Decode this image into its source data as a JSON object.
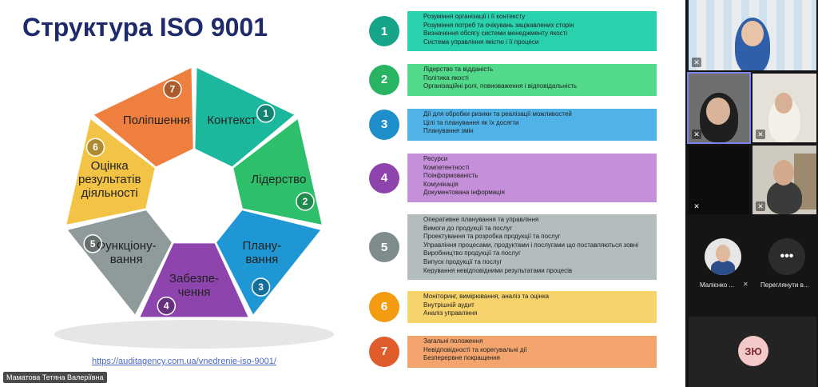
{
  "slide": {
    "title": "Структура ISO 9001",
    "link": "https://auditagency.com.ua/vnedrenie-iso-9001/",
    "wheel": [
      {
        "num": "1",
        "lines": [
          "Контекст"
        ],
        "color": "#1cb89e"
      },
      {
        "num": "2",
        "lines": [
          "Лідерство"
        ],
        "color": "#2dbf6a"
      },
      {
        "num": "3",
        "lines": [
          "Плану-",
          "вання"
        ],
        "color": "#1e97d4"
      },
      {
        "num": "4",
        "lines": [
          "Забезпе-",
          "чення"
        ],
        "color": "#8e44ad"
      },
      {
        "num": "5",
        "lines": [
          "Функціону-",
          "вання"
        ],
        "color": "#8f9a9a"
      },
      {
        "num": "6",
        "lines": [
          "Оцінка",
          "результатів",
          "діяльності"
        ],
        "color": "#f2c344"
      },
      {
        "num": "7",
        "lines": [
          "Поліпшення"
        ],
        "color": "#ef7f3f"
      }
    ],
    "sections": [
      {
        "num": "1",
        "circle": "#17a589",
        "box": "#2ad1ad",
        "items": [
          "Розуміння організації і її контексту",
          "Розуміння потреб та очікувань зацікавлених сторін",
          "Визначення обсягу системи менеджменту якості",
          "Система управління якістю і її процеси"
        ]
      },
      {
        "num": "2",
        "circle": "#28b463",
        "box": "#52d98a",
        "items": [
          "Лідерство та відданість",
          "Політика якості",
          "Організаційні ролі, повноваження і відповідальність"
        ]
      },
      {
        "num": "3",
        "circle": "#1f8fcb",
        "box": "#4fb3e8",
        "items": [
          "Дії для обробки ризики та реалізації можливостей",
          "Цілі та планування як їх досягти",
          "Планування змін"
        ]
      },
      {
        "num": "4",
        "circle": "#8e44ad",
        "box": "#c58fd9",
        "items": [
          "Ресурси",
          "Компетентності",
          "Поінформованість",
          "Комунікація",
          "Документована інформація"
        ]
      },
      {
        "num": "5",
        "circle": "#7f8c8d",
        "box": "#b3bdbd",
        "items": [
          "Оперативне планування та управління",
          "Вимоги до продукції та послуг",
          "Проектування та розробка продукції та послуг",
          "Управління процесами, продуктами і послугами що поставляються зовні",
          "Виробництво продукції та послуг",
          "Випуск продукції та послуг",
          "Керування невідповідними результатами процесів"
        ]
      },
      {
        "num": "6",
        "circle": "#f39c12",
        "box": "#f7d36b",
        "items": [
          "Моніторинг, вимірювання, аналіз та оцінка",
          "Внутрішній аудит",
          "Аналіз управління"
        ]
      },
      {
        "num": "7",
        "circle": "#e05c2a",
        "box": "#f4a56e",
        "items": [
          "Загальні положення",
          "Невідповідності та корегувальні дії",
          "Безперервне покращення"
        ]
      }
    ]
  },
  "participants": {
    "presenter_name": "Маматова Тетяна Валеріївна",
    "tile_name": "Малієнко ...",
    "more_label": "Переглянути в...",
    "more_icon": "ellipsis-icon",
    "initials": "ЗЮ"
  }
}
